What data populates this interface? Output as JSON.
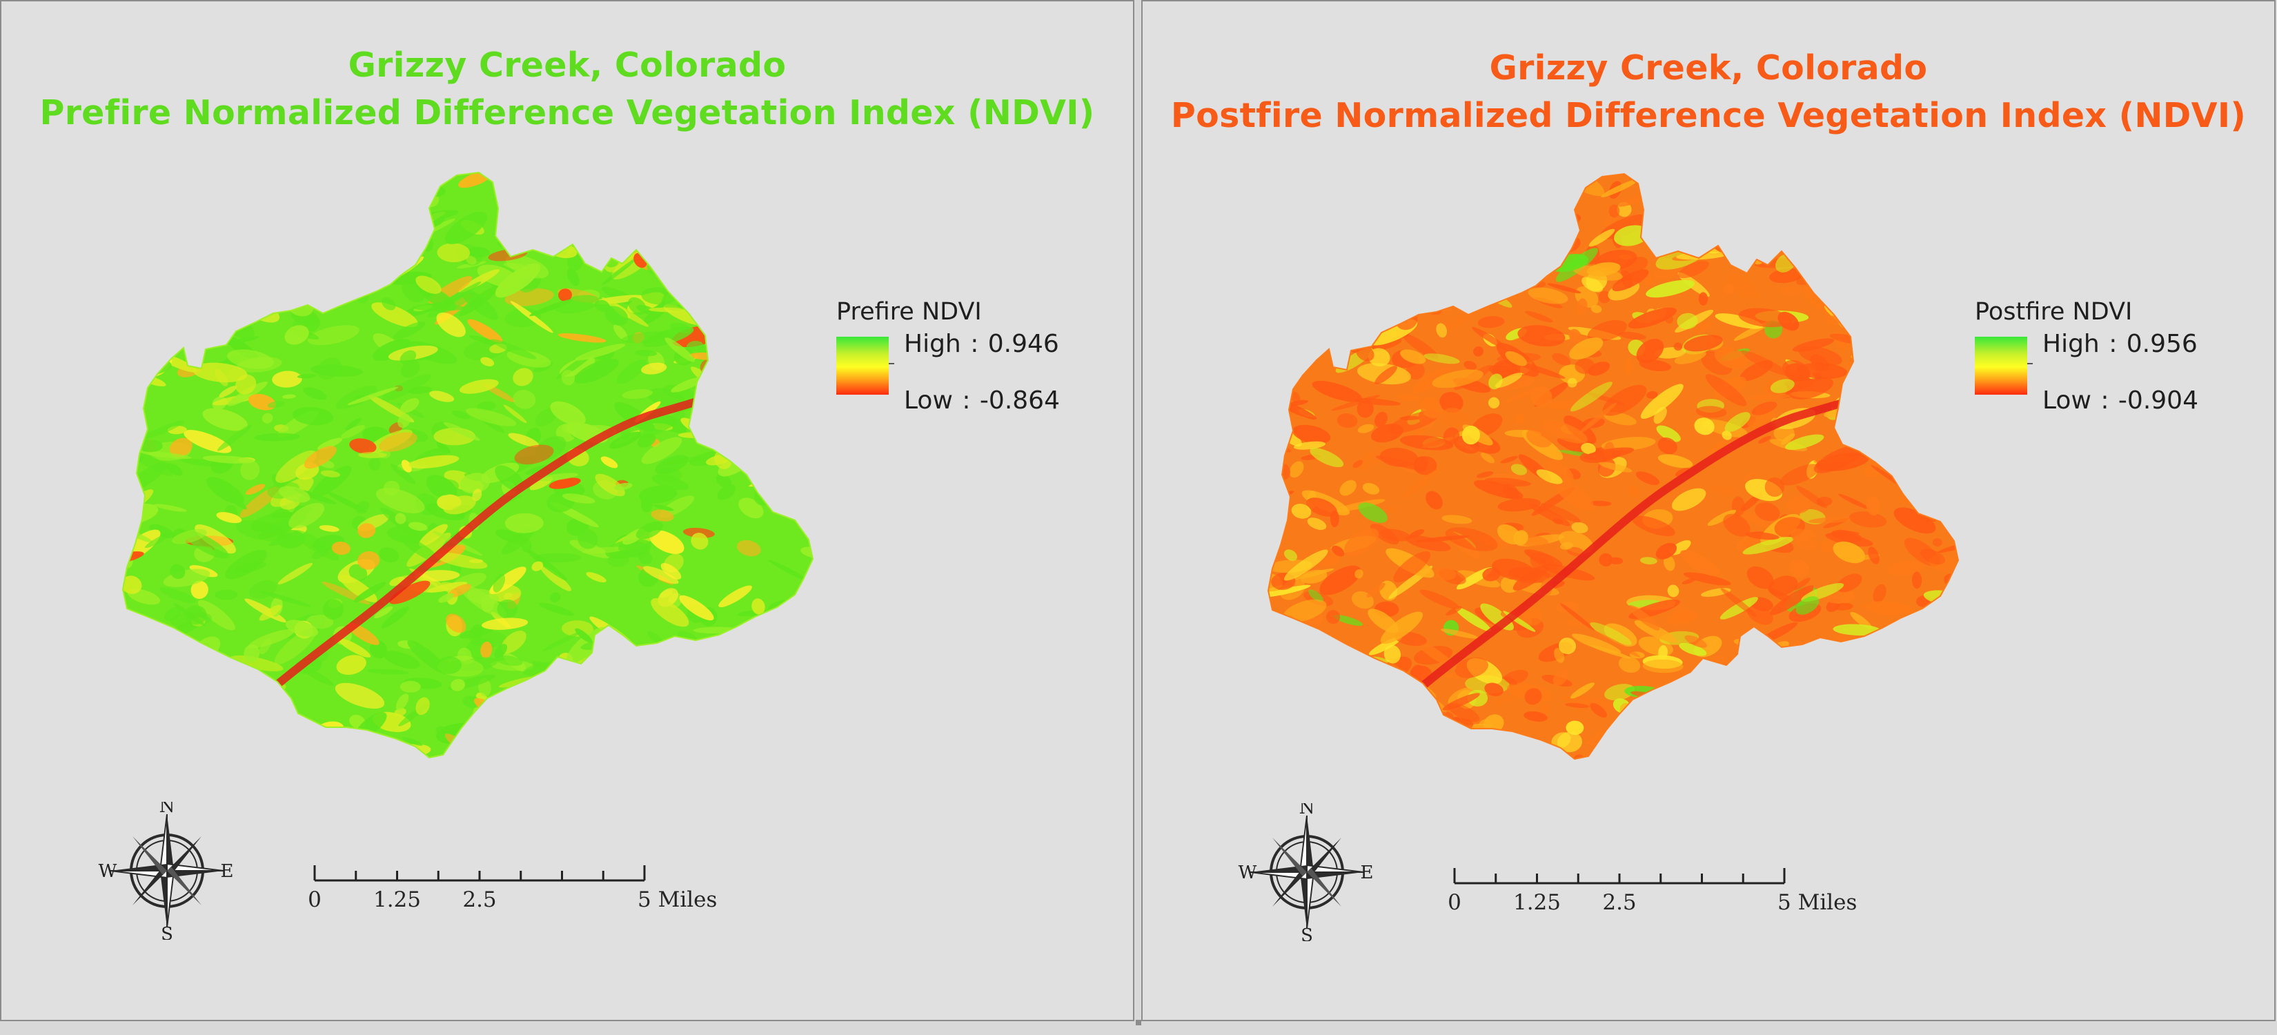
{
  "panels": [
    {
      "id": "prefire",
      "title_line1": "Grizzy Creek, Colorado",
      "title_line2": "Prefire Normalized Difference Vegetation Index (NDVI)",
      "title_color": "#5fdc1f",
      "legend": {
        "title": "Prefire NDVI",
        "high_label": "High",
        "high_value": "0.946",
        "low_label": "Low",
        "low_value": "-0.864"
      },
      "map_palette": [
        "#5ee61c",
        "#9bf026",
        "#d6ee20",
        "#fff02a",
        "#ffb21c",
        "#ff4a12"
      ],
      "dominant_color": "#6ee81f"
    },
    {
      "id": "postfire",
      "title_line1": "Grizzy Creek, Colorado",
      "title_line2": "Postfire Normalized Difference Vegetation Index (NDVI)",
      "title_color": "#f85a17",
      "legend": {
        "title": "Postfire NDVI",
        "high_label": "High",
        "high_value": "0.956",
        "low_label": "Low",
        "low_value": "-0.904"
      },
      "map_palette": [
        "#ff5a14",
        "#ff7a18",
        "#ffae1c",
        "#ffe42a",
        "#d6ee22",
        "#5ee61c"
      ],
      "dominant_color": "#f97a18"
    }
  ],
  "north_arrow": {
    "n": "N",
    "s": "S",
    "e": "E",
    "w": "W"
  },
  "scalebar": {
    "labels": [
      "0",
      "1.25",
      "2.5",
      "5 Miles"
    ],
    "values": [
      0,
      1.25,
      2.5,
      5
    ],
    "max": 5,
    "minor_divisions": 8
  },
  "colors": {
    "legend_high": "#38e83a",
    "legend_mid": "#ffff22",
    "legend_low": "#ff2a10",
    "background": "#e0e0e0"
  }
}
